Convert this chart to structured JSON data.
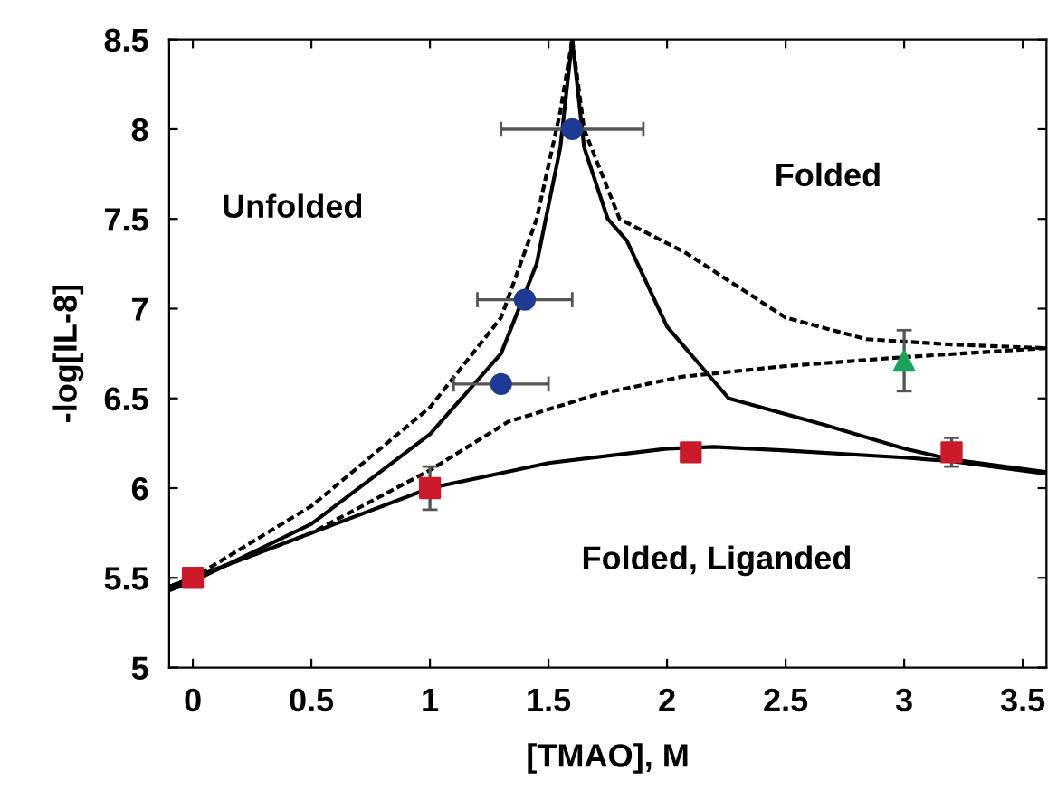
{
  "chart_data": {
    "type": "scatter",
    "xlabel": "[TMAO], M",
    "ylabel": "-log[IL-8]",
    "xlim": [
      -0.1,
      3.6
    ],
    "ylim": [
      5,
      8.5
    ],
    "xticks": [
      0,
      0.5,
      1,
      1.5,
      2,
      2.5,
      3,
      3.5
    ],
    "yticks": [
      5,
      5.5,
      6,
      6.5,
      7,
      7.5,
      8,
      8.5
    ],
    "grid": false,
    "legend": false,
    "annotations": [
      "Unfolded",
      "Folded",
      "Folded, Liganded"
    ],
    "series": [
      {
        "type": "line",
        "color": "#000000",
        "line_style": "solid",
        "marker": "none",
        "x": [
          -0.1,
          0,
          0.5,
          1,
          1.5,
          2,
          2.2,
          2.5,
          3,
          3.2,
          3.6
        ],
        "values": [
          5.45,
          5.5,
          5.75,
          6.0,
          6.14,
          6.22,
          6.23,
          6.21,
          6.17,
          6.15,
          6.08
        ]
      },
      {
        "type": "line",
        "color": "#000000",
        "line_style": "solid",
        "marker": "none",
        "x": [
          -0.1,
          0,
          0.5,
          1,
          1.3,
          1.45,
          1.55,
          1.6
        ],
        "values": [
          5.43,
          5.48,
          5.8,
          6.3,
          6.75,
          7.25,
          7.9,
          8.5
        ]
      },
      {
        "type": "line",
        "color": "#000000",
        "line_style": "solid",
        "marker": "none",
        "x": [
          1.6,
          1.65,
          1.75,
          1.83,
          2.0,
          2.26,
          2.67,
          3.0,
          3.2,
          3.6
        ],
        "values": [
          8.5,
          7.9,
          7.5,
          7.38,
          6.9,
          6.5,
          6.35,
          6.22,
          6.16,
          6.09
        ]
      },
      {
        "type": "line",
        "color": "#000000",
        "line_style": "dashed",
        "marker": "none",
        "x": [
          -0.1,
          0,
          0.5,
          1,
          1.3,
          1.45,
          1.55,
          1.6
        ],
        "values": [
          5.45,
          5.5,
          5.9,
          6.45,
          6.95,
          7.5,
          8.1,
          8.5
        ]
      },
      {
        "type": "line",
        "color": "#000000",
        "line_style": "dashed",
        "marker": "none",
        "x": [
          1.6,
          1.65,
          1.8,
          2.08,
          2.5,
          2.84,
          3.2,
          3.6
        ],
        "values": [
          8.5,
          8.0,
          7.5,
          7.31,
          6.95,
          6.83,
          6.8,
          6.78
        ]
      },
      {
        "type": "line",
        "color": "#000000",
        "line_style": "dashed",
        "marker": "none",
        "x": [
          -0.1,
          0,
          0.5,
          1,
          1.33,
          1.7,
          2.06,
          2.5,
          3.0,
          3.6
        ],
        "values": [
          5.45,
          5.5,
          5.75,
          6.1,
          6.37,
          6.52,
          6.62,
          6.68,
          6.73,
          6.78
        ]
      },
      {
        "color": "#1f3a93",
        "marker": "circle",
        "x": [
          1.3,
          1.4,
          1.6
        ],
        "values": [
          6.58,
          7.05,
          8.0
        ],
        "xerrors": [
          0.2,
          0.2,
          0.3
        ]
      },
      {
        "color": "#cc1a2b",
        "marker": "square",
        "x": [
          0,
          1,
          2.1,
          3.2
        ],
        "values": [
          5.5,
          6.0,
          6.2,
          6.2
        ],
        "errors": [
          null,
          0.12,
          null,
          0.08
        ]
      },
      {
        "color": "#1aa35a",
        "marker": "triangle",
        "x": [
          3.0
        ],
        "values": [
          6.71
        ],
        "errors": [
          0.17
        ]
      }
    ]
  }
}
